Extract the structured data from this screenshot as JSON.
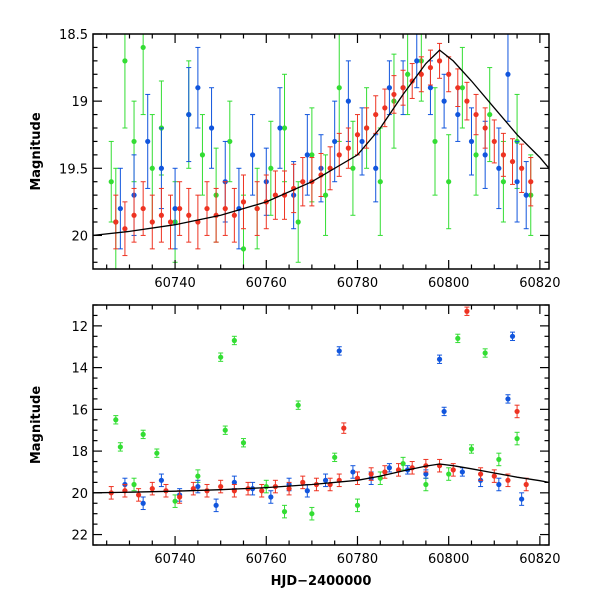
{
  "chart_data": [
    {
      "type": "scatter",
      "panel": "top",
      "ylabel": "Magnitude",
      "xlabel": "",
      "xlim": [
        60722,
        60822
      ],
      "ylim": [
        20.25,
        18.5
      ],
      "y_inverted": true,
      "xticks": [
        60740,
        60760,
        60780,
        60800,
        60820
      ],
      "yticks": [
        18.5,
        19,
        19.5,
        20
      ],
      "ytick_labels": [
        "18.5",
        "19",
        "19.5",
        "20"
      ],
      "model": {
        "x": [
          60722,
          60730,
          60740,
          60750,
          60760,
          60770,
          60780,
          60785,
          60790,
          60795,
          60798,
          60801,
          60805,
          60810,
          60815,
          60820,
          60822
        ],
        "y": [
          20.0,
          19.97,
          19.92,
          19.85,
          19.75,
          19.6,
          19.4,
          19.2,
          18.95,
          18.72,
          18.62,
          18.7,
          18.85,
          19.05,
          19.25,
          19.42,
          19.5
        ]
      },
      "series": [
        {
          "color": "#33dd33",
          "x": [
            60726,
            60727,
            60729,
            60731,
            60733,
            60735,
            60737,
            60740,
            60743,
            60746,
            60749,
            60752,
            60755,
            60758,
            60761,
            60764,
            60767,
            60770,
            60773,
            60776,
            60779,
            60782,
            60785,
            60788,
            60791,
            60794,
            60797,
            60800,
            60803,
            60806,
            60809,
            60812,
            60815,
            60818
          ],
          "y": [
            19.6,
            19.9,
            18.7,
            19.3,
            18.6,
            19.5,
            19.2,
            19.9,
            19.1,
            19.4,
            19.7,
            19.3,
            20.1,
            19.8,
            19.5,
            19.2,
            19.9,
            19.4,
            19.7,
            18.9,
            19.5,
            19.2,
            19.6,
            19.0,
            18.8,
            18.7,
            19.3,
            19.6,
            18.9,
            19.4,
            19.1,
            19.6,
            19.3,
            19.7
          ],
          "err": [
            0.3,
            0.4,
            0.5,
            0.3,
            0.5,
            0.4,
            0.35,
            0.3,
            0.4,
            0.3,
            0.35,
            0.3,
            0.4,
            0.3,
            0.35,
            0.4,
            0.3,
            0.35,
            0.3,
            0.4,
            0.35,
            0.3,
            0.4,
            0.35,
            0.3,
            0.3,
            0.4,
            0.35,
            0.3,
            0.3,
            0.35,
            0.3,
            0.35,
            0.3
          ]
        },
        {
          "color": "#1155dd",
          "x": [
            60728,
            60731,
            60734,
            60737,
            60740,
            60743,
            60745,
            60748,
            60751,
            60754,
            60757,
            60760,
            60763,
            60766,
            60769,
            60772,
            60775,
            60778,
            60781,
            60784,
            60787,
            60790,
            60793,
            60796,
            60799,
            60802,
            60805,
            60808,
            60811,
            60813,
            60815,
            60817
          ],
          "y": [
            19.8,
            19.7,
            19.3,
            19.5,
            19.8,
            19.1,
            18.9,
            19.2,
            19.6,
            19.8,
            19.4,
            19.6,
            19.2,
            19.7,
            19.4,
            19.5,
            19.3,
            19.0,
            19.3,
            19.5,
            18.9,
            18.9,
            18.7,
            18.9,
            19.0,
            19.1,
            19.3,
            19.4,
            19.5,
            18.8,
            19.6,
            19.7
          ],
          "err": [
            0.3,
            0.3,
            0.35,
            0.3,
            0.3,
            0.35,
            0.3,
            0.3,
            0.3,
            0.3,
            0.3,
            0.25,
            0.3,
            0.25,
            0.3,
            0.25,
            0.3,
            0.3,
            0.25,
            0.25,
            0.2,
            0.2,
            0.2,
            0.2,
            0.2,
            0.2,
            0.25,
            0.25,
            0.3,
            0.35,
            0.3,
            0.25
          ]
        },
        {
          "color": "#ee3322",
          "x": [
            60727,
            60729,
            60731,
            60733,
            60735,
            60737,
            60739,
            60741,
            60743,
            60745,
            60747,
            60749,
            60751,
            60753,
            60755,
            60758,
            60760,
            60762,
            60764,
            60766,
            60768,
            60770,
            60772,
            60774,
            60776,
            60778,
            60780,
            60782,
            60784,
            60786,
            60788,
            60790,
            60792,
            60794,
            60796,
            60798,
            60800,
            60802,
            60804,
            60806,
            60808,
            60810,
            60812,
            60814,
            60816,
            60818
          ],
          "y": [
            19.9,
            19.95,
            19.85,
            19.8,
            19.9,
            19.85,
            19.9,
            19.8,
            19.85,
            19.9,
            19.8,
            19.85,
            19.8,
            19.85,
            19.75,
            19.8,
            19.75,
            19.7,
            19.7,
            19.65,
            19.6,
            19.6,
            19.55,
            19.5,
            19.4,
            19.35,
            19.25,
            19.2,
            19.1,
            19.05,
            18.95,
            18.9,
            18.85,
            18.8,
            18.75,
            18.7,
            18.8,
            18.9,
            19.0,
            19.1,
            19.2,
            19.3,
            19.4,
            19.45,
            19.5,
            19.6
          ],
          "err": [
            0.2,
            0.2,
            0.2,
            0.2,
            0.2,
            0.2,
            0.2,
            0.2,
            0.2,
            0.2,
            0.2,
            0.2,
            0.2,
            0.2,
            0.2,
            0.2,
            0.2,
            0.18,
            0.18,
            0.18,
            0.18,
            0.18,
            0.16,
            0.16,
            0.16,
            0.15,
            0.15,
            0.15,
            0.14,
            0.14,
            0.14,
            0.13,
            0.13,
            0.13,
            0.13,
            0.13,
            0.13,
            0.14,
            0.14,
            0.15,
            0.15,
            0.16,
            0.16,
            0.17,
            0.18,
            0.18
          ]
        }
      ]
    },
    {
      "type": "scatter",
      "panel": "bottom",
      "ylabel": "Magnitude",
      "xlabel": "HJD−2400000",
      "xlim": [
        60722,
        60822
      ],
      "ylim": [
        22.5,
        11
      ],
      "y_inverted": true,
      "xticks": [
        60740,
        60760,
        60780,
        60800,
        60820
      ],
      "yticks": [
        12,
        14,
        16,
        18,
        20,
        22
      ],
      "ytick_labels": [
        "12",
        "14",
        "16",
        "18",
        "20",
        "22"
      ],
      "model": {
        "x": [
          60722,
          60730,
          60740,
          60750,
          60760,
          60770,
          60780,
          60785,
          60790,
          60795,
          60798,
          60801,
          60805,
          60810,
          60815,
          60820,
          60822
        ],
        "y": [
          20.0,
          19.97,
          19.92,
          19.85,
          19.75,
          19.6,
          19.4,
          19.2,
          18.95,
          18.72,
          18.62,
          18.7,
          18.85,
          19.05,
          19.25,
          19.42,
          19.5
        ]
      },
      "series": [
        {
          "color": "#33dd33",
          "x": [
            60727,
            60728,
            60731,
            60733,
            60736,
            60740,
            60745,
            60750,
            60751,
            60753,
            60755,
            60760,
            60764,
            60767,
            60770,
            60775,
            60780,
            60785,
            60790,
            60795,
            60800,
            60802,
            60805,
            60808,
            60811,
            60815
          ],
          "y": [
            16.5,
            17.8,
            19.6,
            17.2,
            18.1,
            20.4,
            19.2,
            13.5,
            17.0,
            12.7,
            17.6,
            19.7,
            20.9,
            15.8,
            21.0,
            18.3,
            20.6,
            19.3,
            18.6,
            19.6,
            19.1,
            12.6,
            17.9,
            13.3,
            18.4,
            17.4
          ],
          "err": [
            0.2,
            0.2,
            0.3,
            0.2,
            0.2,
            0.3,
            0.3,
            0.2,
            0.2,
            0.2,
            0.2,
            0.3,
            0.3,
            0.2,
            0.3,
            0.2,
            0.3,
            0.3,
            0.3,
            0.3,
            0.3,
            0.2,
            0.2,
            0.2,
            0.3,
            0.3
          ]
        },
        {
          "color": "#1155dd",
          "x": [
            60729,
            60733,
            60737,
            60741,
            60745,
            60749,
            60753,
            60757,
            60761,
            60765,
            60769,
            60773,
            60776,
            60779,
            60783,
            60787,
            60791,
            60795,
            60798,
            60799,
            60803,
            60807,
            60811,
            60813,
            60814,
            60816
          ],
          "y": [
            19.6,
            20.5,
            19.4,
            20.1,
            19.7,
            20.6,
            19.5,
            19.8,
            20.2,
            19.6,
            19.9,
            19.4,
            13.2,
            19.0,
            19.3,
            18.8,
            18.9,
            19.1,
            13.6,
            16.1,
            19.0,
            19.4,
            19.6,
            15.5,
            12.5,
            20.3
          ],
          "err": [
            0.3,
            0.3,
            0.3,
            0.3,
            0.3,
            0.3,
            0.3,
            0.3,
            0.3,
            0.3,
            0.3,
            0.3,
            0.2,
            0.3,
            0.3,
            0.2,
            0.2,
            0.2,
            0.2,
            0.2,
            0.2,
            0.3,
            0.3,
            0.2,
            0.2,
            0.3
          ]
        },
        {
          "color": "#ee3322",
          "x": [
            60726,
            60729,
            60732,
            60735,
            60738,
            60741,
            60744,
            60747,
            60750,
            60753,
            60756,
            60759,
            60762,
            60765,
            60768,
            60771,
            60774,
            60776,
            60777,
            60780,
            60783,
            60786,
            60789,
            60792,
            60795,
            60798,
            60801,
            60804,
            60807,
            60810,
            60813,
            60815,
            60817
          ],
          "y": [
            20.0,
            19.9,
            20.1,
            19.8,
            19.9,
            20.2,
            19.8,
            19.9,
            19.7,
            19.9,
            19.8,
            19.9,
            19.7,
            19.8,
            19.5,
            19.6,
            19.6,
            19.4,
            16.9,
            19.3,
            19.1,
            19.0,
            18.9,
            18.8,
            18.7,
            18.7,
            18.9,
            11.3,
            19.1,
            19.2,
            19.4,
            16.1,
            19.6
          ],
          "err": [
            0.3,
            0.3,
            0.3,
            0.3,
            0.3,
            0.3,
            0.3,
            0.3,
            0.3,
            0.3,
            0.3,
            0.3,
            0.3,
            0.3,
            0.3,
            0.3,
            0.3,
            0.3,
            0.25,
            0.3,
            0.3,
            0.3,
            0.3,
            0.3,
            0.3,
            0.3,
            0.3,
            0.2,
            0.3,
            0.3,
            0.3,
            0.3,
            0.3
          ]
        }
      ]
    }
  ]
}
